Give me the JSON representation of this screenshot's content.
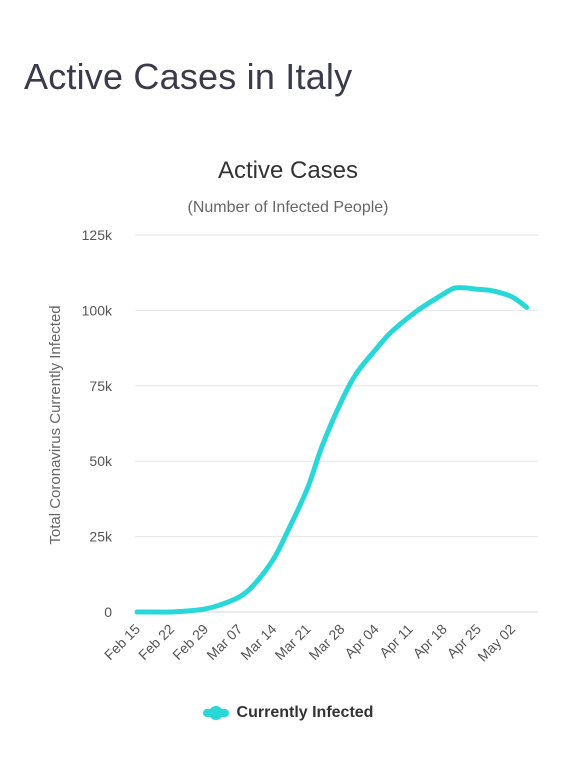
{
  "page": {
    "title": "Active Cases in Italy"
  },
  "colors": {
    "series": "#28d8d8",
    "grid": "#e6e6e6",
    "axis": "#cfd4dd",
    "text": "#555555"
  },
  "chart_data": {
    "type": "line",
    "title": "Active Cases",
    "subtitle": "(Number of Infected People)",
    "xlabel": "",
    "ylabel": "Total Coronavirus Currently Infected",
    "ylim": [
      0,
      125000
    ],
    "yticks": [
      {
        "value": 0,
        "label": "0"
      },
      {
        "value": 25000,
        "label": "25k"
      },
      {
        "value": 50000,
        "label": "50k"
      },
      {
        "value": 75000,
        "label": "75k"
      },
      {
        "value": 100000,
        "label": "100k"
      },
      {
        "value": 125000,
        "label": "125k"
      }
    ],
    "xticks": [
      "Feb 15",
      "Feb 22",
      "Feb 29",
      "Mar 07",
      "Mar 14",
      "Mar 21",
      "Mar 28",
      "Apr 04",
      "Apr 11",
      "Apr 18",
      "Apr 25",
      "May 02"
    ],
    "grid": true,
    "legend": "bottom",
    "series": [
      {
        "name": "Currently Infected",
        "x": [
          "Feb 15",
          "Feb 18",
          "Feb 22",
          "Feb 26",
          "Feb 29",
          "Mar 03",
          "Mar 07",
          "Mar 10",
          "Mar 14",
          "Mar 17",
          "Mar 21",
          "Mar 24",
          "Mar 28",
          "Mar 31",
          "Apr 04",
          "Apr 07",
          "Apr 11",
          "Apr 14",
          "Apr 18",
          "Apr 20",
          "Apr 22",
          "Apr 25",
          "Apr 28",
          "May 02",
          "May 05"
        ],
        "y": [
          3,
          3,
          3,
          400,
          1000,
          2300,
          5000,
          9000,
          17500,
          27000,
          41000,
          55000,
          70000,
          79000,
          87000,
          92500,
          98000,
          101500,
          105500,
          107300,
          107500,
          107000,
          106500,
          104500,
          101000
        ]
      }
    ]
  }
}
